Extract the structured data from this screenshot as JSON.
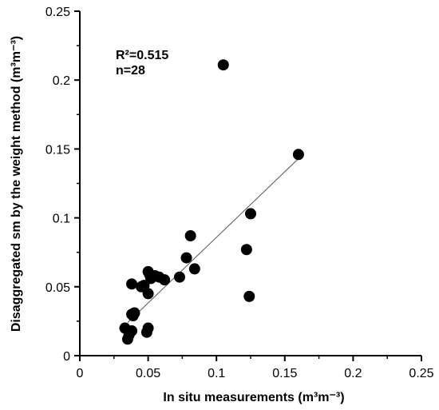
{
  "chart_data": {
    "type": "scatter",
    "xlabel": "In situ measurements (m³m⁻³)",
    "ylabel": "Disaggregated sm by the weight method (m³m⁻³)",
    "xlim": [
      0,
      0.25
    ],
    "ylim": [
      0,
      0.25
    ],
    "x_ticks": [
      "0",
      "0.05",
      "0.1",
      "0.15",
      "0.2",
      "0.25"
    ],
    "y_ticks": [
      "0",
      "0.05",
      "0.1",
      "0.15",
      "0.2",
      "0.25"
    ],
    "x_tick_values": [
      0,
      0.05,
      0.1,
      0.15,
      0.2,
      0.25
    ],
    "y_tick_values": [
      0,
      0.05,
      0.1,
      0.15,
      0.2,
      0.25
    ],
    "annotations": [
      "R²=0.515",
      "n=28"
    ],
    "marker_color": "#000000",
    "line_color": "#555555",
    "grid": false,
    "points": [
      {
        "x": 0.105,
        "y": 0.211
      },
      {
        "x": 0.16,
        "y": 0.146
      },
      {
        "x": 0.125,
        "y": 0.103
      },
      {
        "x": 0.081,
        "y": 0.087
      },
      {
        "x": 0.122,
        "y": 0.077
      },
      {
        "x": 0.078,
        "y": 0.071
      },
      {
        "x": 0.084,
        "y": 0.063
      },
      {
        "x": 0.05,
        "y": 0.061
      },
      {
        "x": 0.055,
        "y": 0.058
      },
      {
        "x": 0.058,
        "y": 0.057
      },
      {
        "x": 0.062,
        "y": 0.055
      },
      {
        "x": 0.073,
        "y": 0.057
      },
      {
        "x": 0.052,
        "y": 0.056
      },
      {
        "x": 0.038,
        "y": 0.052
      },
      {
        "x": 0.045,
        "y": 0.05
      },
      {
        "x": 0.05,
        "y": 0.045
      },
      {
        "x": 0.124,
        "y": 0.043
      },
      {
        "x": 0.04,
        "y": 0.031
      },
      {
        "x": 0.038,
        "y": 0.03
      },
      {
        "x": 0.033,
        "y": 0.02
      },
      {
        "x": 0.038,
        "y": 0.018
      },
      {
        "x": 0.05,
        "y": 0.02
      },
      {
        "x": 0.049,
        "y": 0.017
      },
      {
        "x": 0.036,
        "y": 0.015
      },
      {
        "x": 0.035,
        "y": 0.012
      },
      {
        "x": 0.039,
        "y": 0.029
      },
      {
        "x": 0.047,
        "y": 0.051
      },
      {
        "x": 0.051,
        "y": 0.059
      }
    ],
    "trendline": {
      "x": [
        0.035,
        0.16
      ],
      "y": [
        0.024,
        0.143
      ]
    }
  }
}
